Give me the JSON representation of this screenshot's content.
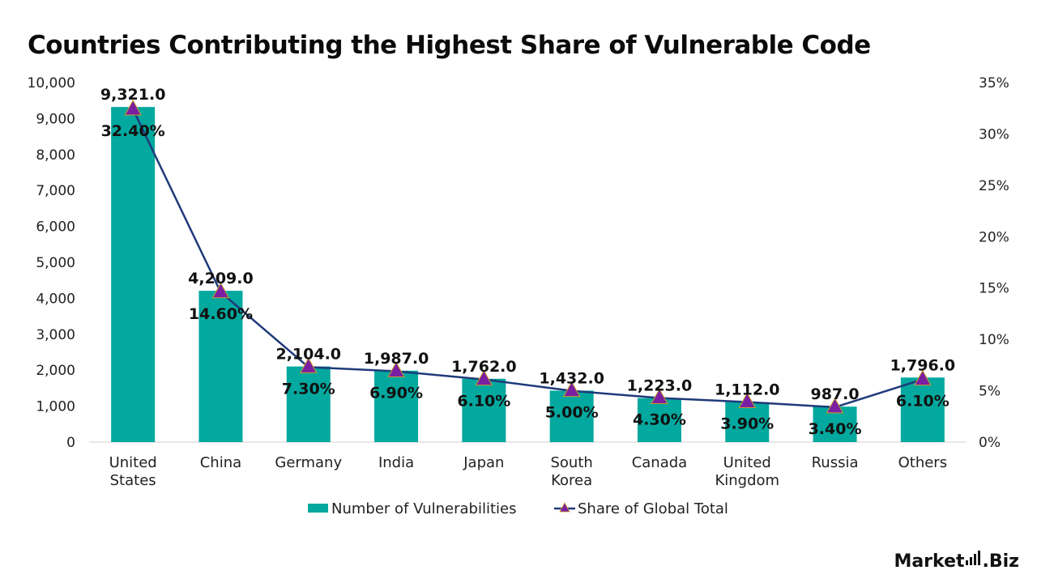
{
  "chart_data": {
    "type": "bar",
    "title": "Countries Contributing the Highest Share of Vulnerable Code",
    "categories": [
      [
        "United",
        "States"
      ],
      [
        "China"
      ],
      [
        "Germany"
      ],
      [
        "India"
      ],
      [
        "Japan"
      ],
      [
        "South",
        "Korea"
      ],
      [
        "Canada"
      ],
      [
        "United",
        "Kingdom"
      ],
      [
        "Russia"
      ],
      [
        "Others"
      ]
    ],
    "series": [
      {
        "name": "Number of Vulnerabilities",
        "type": "bar",
        "axis": "left",
        "color": "#03A89E",
        "values": [
          9321,
          4209,
          2104,
          1987,
          1762,
          1432,
          1223,
          1112,
          987,
          1796
        ],
        "labels": [
          "9,321.0",
          "4,209.0",
          "2,104.0",
          "1,987.0",
          "1,762.0",
          "1,432.0",
          "1,223.0",
          "1,112.0",
          "987.0",
          "1,796.0"
        ]
      },
      {
        "name": "Share of Global Total",
        "type": "line",
        "axis": "right",
        "color": "#1F3A7A",
        "marker": "triangle",
        "marker_color": "#7B1FA2",
        "values": [
          32.4,
          14.6,
          7.3,
          6.9,
          6.1,
          5.0,
          4.3,
          3.9,
          3.4,
          6.1
        ],
        "labels": [
          "32.40%",
          "14.60%",
          "7.30%",
          "6.90%",
          "6.10%",
          "5.00%",
          "4.30%",
          "3.90%",
          "3.40%",
          "6.10%"
        ]
      }
    ],
    "y_left": {
      "range": [
        0,
        10000
      ],
      "ticks": [
        0,
        1000,
        2000,
        3000,
        4000,
        5000,
        6000,
        7000,
        8000,
        9000,
        10000
      ],
      "tick_labels": [
        "0",
        "1,000",
        "2,000",
        "3,000",
        "4,000",
        "5,000",
        "6,000",
        "7,000",
        "8,000",
        "9,000",
        "10,000"
      ]
    },
    "y_right": {
      "range": [
        0,
        35
      ],
      "ticks": [
        0,
        5,
        10,
        15,
        20,
        25,
        30,
        35
      ],
      "tick_labels": [
        "0%",
        "5%",
        "10%",
        "15%",
        "20%",
        "25%",
        "30%",
        "35%"
      ]
    },
    "grid": false,
    "legend_position": "bottom"
  },
  "brand": {
    "name_left": "Market",
    "name_right": ".Biz"
  }
}
